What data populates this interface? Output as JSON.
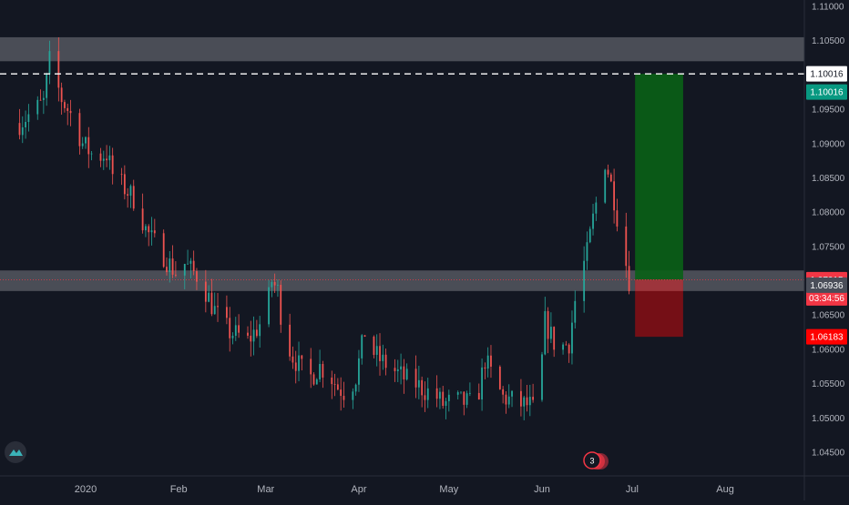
{
  "chart_data": {
    "type": "candlestick",
    "instrument_timeframe": "daily",
    "y_axis": {
      "ticks": [
        "1.11000",
        "1.10500",
        "1.10000",
        "1.09500",
        "1.09000",
        "1.08500",
        "1.08000",
        "1.07500",
        "1.07000",
        "1.06500",
        "1.06000",
        "1.05500",
        "1.05000",
        "1.04500"
      ],
      "tick_values": [
        1.11,
        1.105,
        1.1,
        1.095,
        1.09,
        1.085,
        1.08,
        1.075,
        1.07,
        1.065,
        1.06,
        1.055,
        1.05,
        1.045
      ],
      "range": [
        1.042,
        1.1123
      ],
      "position": "right"
    },
    "x_axis": {
      "labels": [
        "2020",
        "Feb",
        "Mar",
        "Apr",
        "May",
        "Jun",
        "Jul",
        "Aug"
      ],
      "label_dates": [
        "2020-01-01",
        "2020-02-01",
        "2020-03-01",
        "2020-04-01",
        "2020-05-01",
        "2020-06-01",
        "2020-07-01",
        "2020-08-01"
      ],
      "range": [
        "2019-12-10",
        "2020-08-31"
      ]
    },
    "price_path": [
      [
        "2019-12-10",
        1.093
      ],
      [
        "2019-12-14",
        1.0945
      ],
      [
        "2019-12-18",
        1.096
      ],
      [
        "2019-12-20",
        1.102
      ],
      [
        "2019-12-24",
        1.0965
      ],
      [
        "2019-12-28",
        1.0935
      ],
      [
        "2019-12-31",
        1.09
      ],
      [
        "2020-01-04",
        1.088
      ],
      [
        "2020-01-08",
        1.0885
      ],
      [
        "2020-01-10",
        1.0855
      ],
      [
        "2020-01-12",
        1.0845
      ],
      [
        "2020-01-15",
        1.083
      ],
      [
        "2020-01-18",
        1.0815
      ],
      [
        "2020-01-21",
        1.0775
      ],
      [
        "2020-01-23",
        1.076
      ],
      [
        "2020-01-26",
        1.0745
      ],
      [
        "2020-01-28",
        1.073
      ],
      [
        "2020-01-31",
        1.0712
      ],
      [
        "2020-02-03",
        1.0725
      ],
      [
        "2020-02-05",
        1.0715
      ],
      [
        "2020-02-08",
        1.0705
      ],
      [
        "2020-02-12",
        1.0665
      ],
      [
        "2020-02-15",
        1.064
      ],
      [
        "2020-02-18",
        1.0625
      ],
      [
        "2020-02-21",
        1.062
      ],
      [
        "2020-02-24",
        1.0612
      ],
      [
        "2020-02-27",
        1.063
      ],
      [
        "2020-03-01",
        1.065
      ],
      [
        "2020-03-03",
        1.07
      ],
      [
        "2020-03-05",
        1.0685
      ],
      [
        "2020-03-07",
        1.062
      ],
      [
        "2020-03-10",
        1.059
      ],
      [
        "2020-03-13",
        1.057
      ],
      [
        "2020-03-16",
        1.056
      ],
      [
        "2020-03-19",
        1.0575
      ],
      [
        "2020-03-22",
        1.0565
      ],
      [
        "2020-03-25",
        1.0545
      ],
      [
        "2020-03-28",
        1.0535
      ],
      [
        "2020-03-31",
        1.056
      ],
      [
        "2020-04-03",
        1.0625
      ],
      [
        "2020-04-05",
        1.06
      ],
      [
        "2020-04-08",
        1.0585
      ],
      [
        "2020-04-11",
        1.0575
      ],
      [
        "2020-04-14",
        1.0565
      ],
      [
        "2020-04-17",
        1.0555
      ],
      [
        "2020-04-20",
        1.055
      ],
      [
        "2020-04-23",
        1.054
      ],
      [
        "2020-04-26",
        1.0535
      ],
      [
        "2020-04-29",
        1.052
      ],
      [
        "2020-05-03",
        1.0525
      ],
      [
        "2020-05-07",
        1.0522
      ],
      [
        "2020-05-10",
        1.0518
      ],
      [
        "2020-05-13",
        1.0585
      ],
      [
        "2020-05-16",
        1.0555
      ],
      [
        "2020-05-19",
        1.053
      ],
      [
        "2020-05-22",
        1.0525
      ],
      [
        "2020-05-25",
        1.052
      ],
      [
        "2020-05-28",
        1.0518
      ],
      [
        "2020-05-29",
        1.0512
      ],
      [
        "2020-05-31",
        1.053
      ],
      [
        "2020-06-02",
        1.064
      ],
      [
        "2020-06-05",
        1.061
      ],
      [
        "2020-06-08",
        1.0605
      ],
      [
        "2020-06-10",
        1.061
      ],
      [
        "2020-06-12",
        1.067
      ],
      [
        "2020-06-14",
        1.071
      ],
      [
        "2020-06-16",
        1.074
      ],
      [
        "2020-06-18",
        1.079
      ],
      [
        "2020-06-20",
        1.0835
      ],
      [
        "2020-06-22",
        1.0875
      ],
      [
        "2020-06-23",
        1.086
      ],
      [
        "2020-06-25",
        1.082
      ],
      [
        "2020-06-27",
        1.077
      ],
      [
        "2020-06-29",
        1.0725
      ],
      [
        "2020-06-30",
        1.0702
      ]
    ],
    "zones": [
      {
        "name": "resistance-zone",
        "low": 1.102,
        "high": 1.1055
      },
      {
        "name": "support-zone",
        "low": 1.0685,
        "high": 1.0715
      }
    ],
    "target_line": 1.10016,
    "position_tool": {
      "start": "2020-07-02",
      "end": "2020-07-18",
      "entry": 1.07015,
      "target": 1.10016,
      "stop": 1.06183
    },
    "last_price": 1.07015,
    "price_labels": [
      {
        "text": "1.10016",
        "value": 1.10016,
        "bg": "#ffffff",
        "fg": "#131722"
      },
      {
        "text": "1.10016",
        "value": 1.10016,
        "bg": "#089981",
        "fg": "#ffffff",
        "offset": 1
      },
      {
        "text": "1.07015",
        "value": 1.07015,
        "bg": "#f23645",
        "fg": "#ffffff"
      },
      {
        "text": "03:34:56",
        "value": 1.07015,
        "bg": "#f23645",
        "fg": "#ffffff",
        "offset": 1
      },
      {
        "text": "1.06936",
        "value": 1.06936,
        "bg": "#4a4e59",
        "fg": "#ffffff"
      },
      {
        "text": "1.06183",
        "value": 1.06183,
        "bg": "#ff0000",
        "fg": "#ffffff"
      }
    ],
    "events_badge": "3",
    "colors": {
      "background": "#131722",
      "up": "#26a69a",
      "down": "#ef5350",
      "zone": "#5d6068",
      "profit": "#0a5f17",
      "loss": "#7a0f16",
      "loss_overlap": "#a13a40",
      "axis_text": "#b2b5be",
      "last_price_line": "#f23645"
    },
    "grid": false,
    "legend": "none"
  },
  "logo": {
    "icon": "tradingview-logo-icon"
  }
}
